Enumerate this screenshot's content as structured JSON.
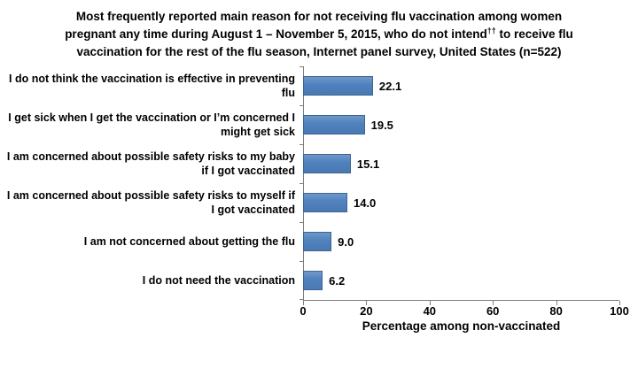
{
  "title": {
    "part1": "Most frequently reported main reason for not receiving flu vaccination among women pregnant any time during August 1 – November 5, 2015, who do not intend",
    "sup": "††",
    "part2": " to receive flu vaccination for the rest of the flu season, Internet panel survey, United States (n=522)"
  },
  "chart_data": {
    "type": "bar",
    "orientation": "horizontal",
    "title": "Most frequently reported main reason for not receiving flu vaccination among women pregnant any time during August 1 – November 5, 2015, who do not intend†† to receive flu vaccination for the rest of the flu season, Internet panel survey, United States (n=522)",
    "categories": [
      "I do not think the vaccination is effective in preventing flu",
      "I get sick when I get the vaccination or I’m concerned I might get sick",
      "I am concerned about possible safety risks to my baby if I got vaccinated",
      "I am concerned about possible safety risks to myself if I got vaccinated",
      "I am not concerned about getting the flu",
      "I do not need the vaccination"
    ],
    "values": [
      22.1,
      19.5,
      15.1,
      14.0,
      9.0,
      6.2
    ],
    "value_labels": [
      "22.1",
      "19.5",
      "15.1",
      "14.0",
      "9.0",
      "6.2"
    ],
    "xlabel": "Percentage among non-vaccinated",
    "xlim": [
      0,
      100
    ],
    "xticks": [
      0,
      20,
      40,
      60,
      80,
      100
    ],
    "grid": false,
    "legend": "none",
    "bar_color": "#4F81BD",
    "bar_border_color": "#3A6693",
    "axis_color": "#7F7F7F"
  }
}
